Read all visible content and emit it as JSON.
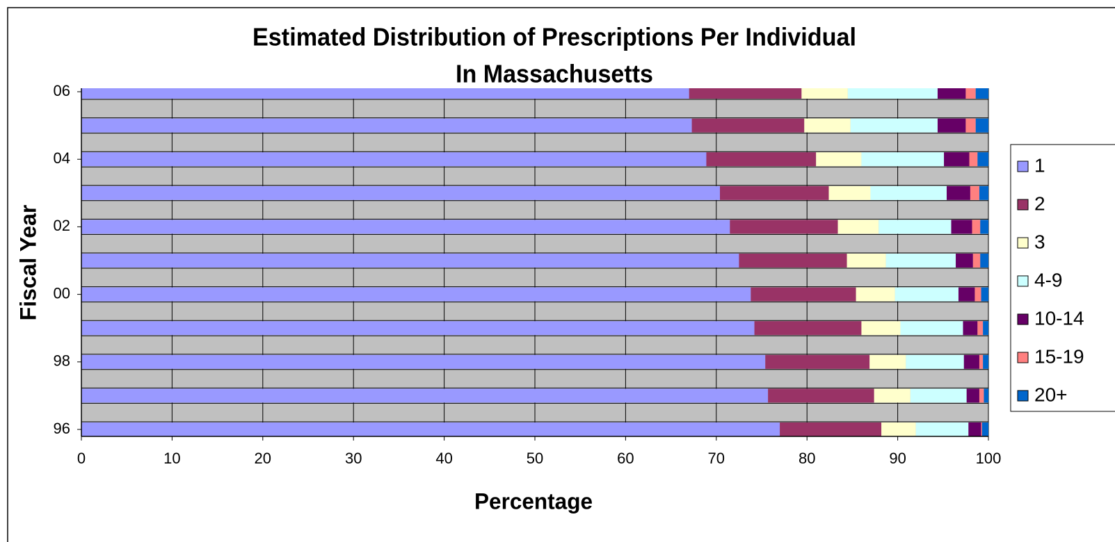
{
  "chart_data": {
    "type": "stacked_barh",
    "title": [
      "Estimated Distribution of Prescriptions Per Individual",
      "In Massachusetts"
    ],
    "xlabel": "Percentage",
    "ylabel": "Fiscal Year",
    "categories": [
      "96",
      null,
      "98",
      null,
      "00",
      null,
      "02",
      null,
      "04",
      null,
      "06"
    ],
    "series": [
      {
        "name": "1",
        "color": "#9999ff",
        "values": [
          77.0,
          75.7,
          75.4,
          74.2,
          73.8,
          72.5,
          71.5,
          70.4,
          68.9,
          67.3,
          67.0
        ]
      },
      {
        "name": "2",
        "color": "#993366",
        "values": [
          11.2,
          11.7,
          11.5,
          11.8,
          11.6,
          11.9,
          11.9,
          12.0,
          12.1,
          12.4,
          12.4
        ]
      },
      {
        "name": "3",
        "color": "#ffffcc",
        "values": [
          3.8,
          4.0,
          4.0,
          4.3,
          4.3,
          4.3,
          4.5,
          4.6,
          5.0,
          5.1,
          5.1
        ]
      },
      {
        "name": "4-9",
        "color": "#ccffff",
        "values": [
          5.8,
          6.2,
          6.4,
          6.9,
          7.0,
          7.7,
          8.0,
          8.4,
          9.1,
          9.6,
          9.9
        ]
      },
      {
        "name": "10-14",
        "color": "#660066",
        "values": [
          1.4,
          1.4,
          1.7,
          1.6,
          1.8,
          1.9,
          2.3,
          2.6,
          2.8,
          3.1,
          3.1
        ]
      },
      {
        "name": "15-19",
        "color": "#ff8080",
        "values": [
          0.1,
          0.5,
          0.4,
          0.6,
          0.7,
          0.8,
          0.9,
          1.0,
          0.9,
          1.1,
          1.1
        ]
      },
      {
        "name": "20+",
        "color": "#0066cc",
        "values": [
          0.7,
          0.5,
          0.6,
          0.6,
          0.8,
          0.9,
          0.9,
          1.0,
          1.2,
          1.4,
          1.4
        ]
      }
    ],
    "xlim": [
      0,
      100
    ],
    "xticks": [
      0,
      10,
      20,
      30,
      40,
      50,
      60,
      70,
      80,
      90,
      100
    ],
    "grid": true,
    "legend": "right"
  }
}
